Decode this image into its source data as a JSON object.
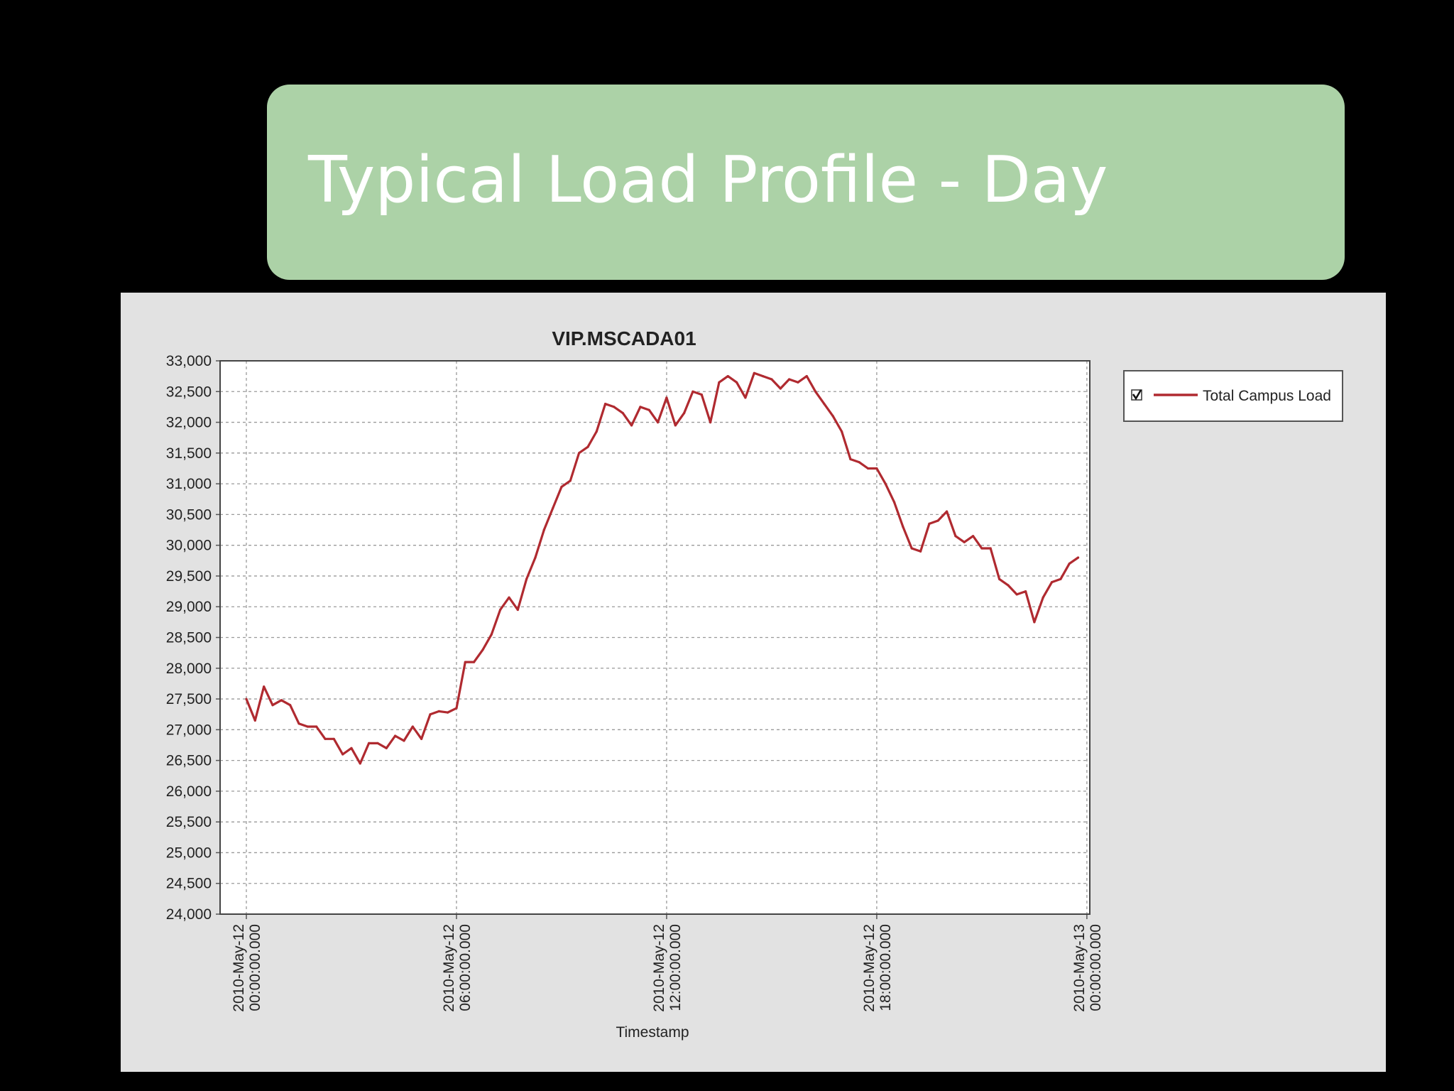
{
  "slide": {
    "title": "Typical Load Profile - Day"
  },
  "colors": {
    "background": "#000000",
    "title_banner": "#acd2a7",
    "title_text": "#ffffff",
    "chart_panel": "#e2e2e2",
    "plot_background": "#ffffff",
    "grid": "#9a9a9a",
    "series": "#b02a30"
  },
  "chart_data": {
    "type": "line",
    "title": "VIP.MSCADA01",
    "xlabel": "Timestamp",
    "ylabel": "",
    "ylim": [
      24000,
      33000
    ],
    "yticks": [
      24000,
      24500,
      25000,
      25500,
      26000,
      26500,
      27000,
      27500,
      28000,
      28500,
      29000,
      29500,
      30000,
      30500,
      31000,
      31500,
      32000,
      32500,
      33000
    ],
    "ytick_labels": [
      "24,000",
      "24,500",
      "25,000",
      "25,500",
      "26,000",
      "26,500",
      "27,000",
      "27,500",
      "28,000",
      "28,500",
      "29,000",
      "29,500",
      "30,000",
      "30,500",
      "31,000",
      "31,500",
      "32,000",
      "32,500",
      "33,000"
    ],
    "xlim": [
      "2010-05-11 23:15",
      "2010-05-13 00:05"
    ],
    "xticks": [
      {
        "x": "2010-05-12 00:00",
        "line1": "2010-May-12",
        "line2": "00:00:00.000"
      },
      {
        "x": "2010-05-12 06:00",
        "line1": "2010-May-12",
        "line2": "06:00:00.000"
      },
      {
        "x": "2010-05-12 12:00",
        "line1": "2010-May-12",
        "line2": "12:00:00.000"
      },
      {
        "x": "2010-05-12 18:00",
        "line1": "2010-May-12",
        "line2": "18:00:00.000"
      },
      {
        "x": "2010-05-13 00:00",
        "line1": "2010-May-13",
        "line2": "00:00:00.000"
      }
    ],
    "grid": true,
    "legend_position": "right",
    "legend_checkbox": "checked",
    "series": [
      {
        "name": "Total Campus Load",
        "color": "#b02a30",
        "points": [
          [
            "2010-05-12 00:00",
            27500
          ],
          [
            "2010-05-12 00:15",
            27150
          ],
          [
            "2010-05-12 00:30",
            27700
          ],
          [
            "2010-05-12 00:45",
            27400
          ],
          [
            "2010-05-12 01:00",
            27480
          ],
          [
            "2010-05-12 01:15",
            27400
          ],
          [
            "2010-05-12 01:30",
            27100
          ],
          [
            "2010-05-12 01:45",
            27050
          ],
          [
            "2010-05-12 02:00",
            27050
          ],
          [
            "2010-05-12 02:15",
            26850
          ],
          [
            "2010-05-12 02:30",
            26850
          ],
          [
            "2010-05-12 02:45",
            26600
          ],
          [
            "2010-05-12 03:00",
            26700
          ],
          [
            "2010-05-12 03:15",
            26450
          ],
          [
            "2010-05-12 03:30",
            26780
          ],
          [
            "2010-05-12 03:45",
            26780
          ],
          [
            "2010-05-12 04:00",
            26700
          ],
          [
            "2010-05-12 04:15",
            26900
          ],
          [
            "2010-05-12 04:30",
            26820
          ],
          [
            "2010-05-12 04:45",
            27050
          ],
          [
            "2010-05-12 05:00",
            26850
          ],
          [
            "2010-05-12 05:15",
            27250
          ],
          [
            "2010-05-12 05:30",
            27300
          ],
          [
            "2010-05-12 05:45",
            27280
          ],
          [
            "2010-05-12 06:00",
            27350
          ],
          [
            "2010-05-12 06:15",
            28100
          ],
          [
            "2010-05-12 06:30",
            28100
          ],
          [
            "2010-05-12 06:45",
            28300
          ],
          [
            "2010-05-12 07:00",
            28550
          ],
          [
            "2010-05-12 07:15",
            28950
          ],
          [
            "2010-05-12 07:30",
            29150
          ],
          [
            "2010-05-12 07:45",
            28950
          ],
          [
            "2010-05-12 08:00",
            29450
          ],
          [
            "2010-05-12 08:15",
            29800
          ],
          [
            "2010-05-12 08:30",
            30250
          ],
          [
            "2010-05-12 08:45",
            30600
          ],
          [
            "2010-05-12 09:00",
            30950
          ],
          [
            "2010-05-12 09:15",
            31050
          ],
          [
            "2010-05-12 09:30",
            31500
          ],
          [
            "2010-05-12 09:45",
            31600
          ],
          [
            "2010-05-12 10:00",
            31850
          ],
          [
            "2010-05-12 10:15",
            32300
          ],
          [
            "2010-05-12 10:30",
            32250
          ],
          [
            "2010-05-12 10:45",
            32150
          ],
          [
            "2010-05-12 11:00",
            31950
          ],
          [
            "2010-05-12 11:15",
            32250
          ],
          [
            "2010-05-12 11:30",
            32200
          ],
          [
            "2010-05-12 11:45",
            32000
          ],
          [
            "2010-05-12 12:00",
            32400
          ],
          [
            "2010-05-12 12:15",
            31950
          ],
          [
            "2010-05-12 12:30",
            32150
          ],
          [
            "2010-05-12 12:45",
            32500
          ],
          [
            "2010-05-12 13:00",
            32450
          ],
          [
            "2010-05-12 13:15",
            32000
          ],
          [
            "2010-05-12 13:30",
            32650
          ],
          [
            "2010-05-12 13:45",
            32750
          ],
          [
            "2010-05-12 14:00",
            32650
          ],
          [
            "2010-05-12 14:15",
            32400
          ],
          [
            "2010-05-12 14:30",
            32800
          ],
          [
            "2010-05-12 14:45",
            32750
          ],
          [
            "2010-05-12 15:00",
            32700
          ],
          [
            "2010-05-12 15:15",
            32550
          ],
          [
            "2010-05-12 15:30",
            32700
          ],
          [
            "2010-05-12 15:45",
            32650
          ],
          [
            "2010-05-12 16:00",
            32750
          ],
          [
            "2010-05-12 16:15",
            32500
          ],
          [
            "2010-05-12 16:30",
            32300
          ],
          [
            "2010-05-12 16:45",
            32100
          ],
          [
            "2010-05-12 17:00",
            31850
          ],
          [
            "2010-05-12 17:15",
            31400
          ],
          [
            "2010-05-12 17:30",
            31350
          ],
          [
            "2010-05-12 17:45",
            31250
          ],
          [
            "2010-05-12 18:00",
            31250
          ],
          [
            "2010-05-12 18:15",
            31000
          ],
          [
            "2010-05-12 18:30",
            30700
          ],
          [
            "2010-05-12 18:45",
            30300
          ],
          [
            "2010-05-12 19:00",
            29950
          ],
          [
            "2010-05-12 19:15",
            29900
          ],
          [
            "2010-05-12 19:30",
            30350
          ],
          [
            "2010-05-12 19:45",
            30400
          ],
          [
            "2010-05-12 20:00",
            30550
          ],
          [
            "2010-05-12 20:15",
            30150
          ],
          [
            "2010-05-12 20:30",
            30050
          ],
          [
            "2010-05-12 20:45",
            30150
          ],
          [
            "2010-05-12 21:00",
            29950
          ],
          [
            "2010-05-12 21:15",
            29950
          ],
          [
            "2010-05-12 21:30",
            29450
          ],
          [
            "2010-05-12 21:45",
            29350
          ],
          [
            "2010-05-12 22:00",
            29200
          ],
          [
            "2010-05-12 22:15",
            29250
          ],
          [
            "2010-05-12 22:30",
            28750
          ],
          [
            "2010-05-12 22:45",
            29150
          ],
          [
            "2010-05-12 23:00",
            29400
          ],
          [
            "2010-05-12 23:15",
            29450
          ],
          [
            "2010-05-12 23:30",
            29700
          ],
          [
            "2010-05-12 23:45",
            29800
          ]
        ]
      }
    ]
  }
}
